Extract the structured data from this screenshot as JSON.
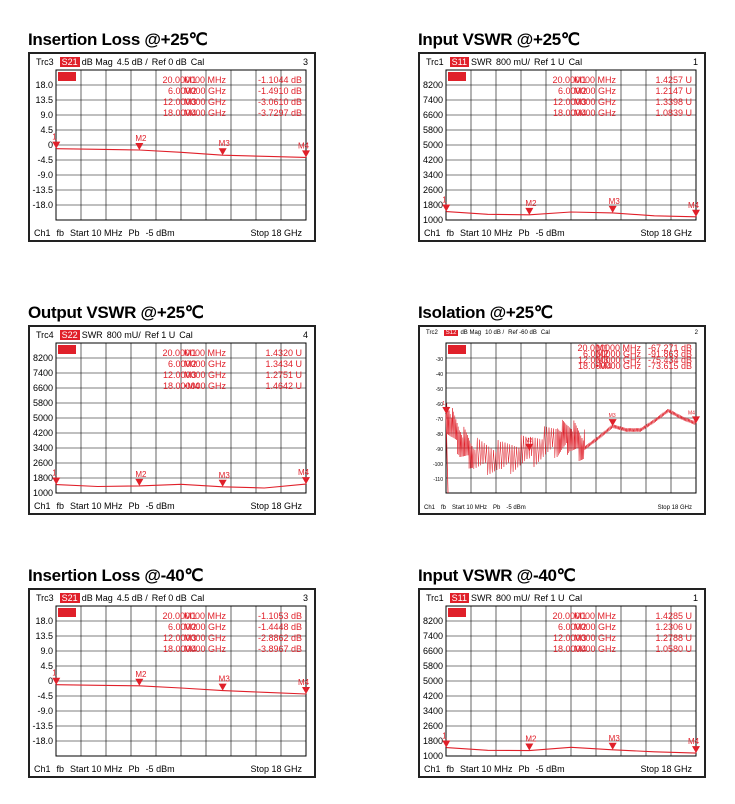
{
  "colors": {
    "trace": "#e0202a",
    "grid": "#000000",
    "background": "#ffffff",
    "frame": "#222222"
  },
  "panels": [
    {
      "title": "Insertion Loss @+25℃",
      "header": {
        "trace": "Trc3",
        "param": "S21",
        "format": "dB Mag",
        "scale": "4.5 dB /",
        "ref": "Ref 0 dB",
        "cal": "Cal",
        "num": "3"
      },
      "footer": {
        "ch": "Ch1",
        "fb": "fb",
        "start": "Start 10 MHz",
        "pb": "Pb",
        "power": "-5 dBm",
        "stop": "Stop 18 GHz"
      },
      "markers": [
        {
          "id": "M1",
          "freq": "20.000000 MHz",
          "value": "-1.1044 dB"
        },
        {
          "id": "M2",
          "freq": "6.000000 GHz",
          "value": "-1.4910 dB"
        },
        {
          "id": "M3",
          "freq": "12.000000 GHz",
          "value": "-3.0610 dB"
        },
        {
          "id": "M4",
          "freq": "18.000000 GHz",
          "value": "-3.7297 dB"
        }
      ]
    },
    {
      "title": "Input VSWR @+25℃",
      "header": {
        "trace": "Trc1",
        "param": "S11",
        "format": "SWR",
        "scale": "800 mU/",
        "ref": "Ref 1 U",
        "cal": "Cal",
        "num": "1"
      },
      "footer": {
        "ch": "Ch1",
        "fb": "fb",
        "start": "Start 10 MHz",
        "pb": "Pb",
        "power": "-5 dBm",
        "stop": "Stop 18 GHz"
      },
      "markers": [
        {
          "id": "M1",
          "freq": "20.000000 MHz",
          "value": "1.4257 U"
        },
        {
          "id": "M2",
          "freq": "6.000000 GHz",
          "value": "1.2147 U"
        },
        {
          "id": "M3",
          "freq": "12.000000 GHz",
          "value": "1.3398 U"
        },
        {
          "id": "M4",
          "freq": "18.000000 GHz",
          "value": "1.0839 U"
        }
      ]
    },
    {
      "title": "Output VSWR @+25℃",
      "header": {
        "trace": "Trc4",
        "param": "S22",
        "format": "SWR",
        "scale": "800 mU/",
        "ref": "Ref 1 U",
        "cal": "Cal",
        "num": "4"
      },
      "footer": {
        "ch": "Ch1",
        "fb": "fb",
        "start": "Start 10 MHz",
        "pb": "Pb",
        "power": "-5 dBm",
        "stop": "Stop 18 GHz"
      },
      "markers": [
        {
          "id": "M1",
          "freq": "20.000000 MHz",
          "value": "1.4320 U"
        },
        {
          "id": "M2",
          "freq": "6.000000 GHz",
          "value": "1.3434 U"
        },
        {
          "id": "M3",
          "freq": "12.000000 GHz",
          "value": "1.2751 U"
        },
        {
          "id": "•M4",
          "freq": "18.000000 GHz",
          "value": "1.4642 U"
        }
      ]
    },
    {
      "title": "Isolation @+25℃",
      "header": {
        "trace": "Trc2",
        "param": "S12",
        "format": "dB Mag",
        "scale": "10 dB /",
        "ref": "Ref -60 dB",
        "cal": "Cal",
        "num": "2"
      },
      "footer": {
        "ch": "Ch1",
        "fb": "fb",
        "start": "Start 10 MHz",
        "pb": "Pb",
        "power": "-5 dBm",
        "stop": "Stop 18 GHz"
      },
      "markers": [
        {
          "id": "M1",
          "freq": "20.000000 MHz",
          "value": "-67.271 dB"
        },
        {
          "id": "M2",
          "freq": "6.000000 GHz",
          "value": "-91.863 dB"
        },
        {
          "id": "M3",
          "freq": "12.000000 GHz",
          "value": "-75.434 dB"
        },
        {
          "id": "•M4",
          "freq": "18.000000 GHz",
          "value": "-73.615 dB"
        }
      ]
    },
    {
      "title": "Insertion Loss @-40℃",
      "header": {
        "trace": "Trc3",
        "param": "S21",
        "format": "dB Mag",
        "scale": "4.5 dB /",
        "ref": "Ref 0 dB",
        "cal": "Cal",
        "num": "3"
      },
      "footer": {
        "ch": "Ch1",
        "fb": "fb",
        "start": "Start 10 MHz",
        "pb": "Pb",
        "power": "-5 dBm",
        "stop": "Stop 18 GHz"
      },
      "markers": [
        {
          "id": "M1",
          "freq": "20.000000 MHz",
          "value": "-1.1053 dB"
        },
        {
          "id": "M2",
          "freq": "6.000000 GHz",
          "value": "-1.4448 dB"
        },
        {
          "id": "M3",
          "freq": "12.000000 GHz",
          "value": "-2.8862 dB"
        },
        {
          "id": "M4",
          "freq": "18.000000 GHz",
          "value": "-3.8967 dB"
        }
      ]
    },
    {
      "title": "Input VSWR @-40℃",
      "header": {
        "trace": "Trc1",
        "param": "S11",
        "format": "SWR",
        "scale": "800 mU/",
        "ref": "Ref 1 U",
        "cal": "Cal",
        "num": "1"
      },
      "footer": {
        "ch": "Ch1",
        "fb": "fb",
        "start": "Start 10 MHz",
        "pb": "Pb",
        "power": "-5 dBm",
        "stop": "Stop 18 GHz"
      },
      "markers": [
        {
          "id": "M1",
          "freq": "20.000000 MHz",
          "value": "1.4285 U"
        },
        {
          "id": "M2",
          "freq": "6.000000 GHz",
          "value": "1.2306 U"
        },
        {
          "id": "M3",
          "freq": "12.000000 GHz",
          "value": "1.2788 U"
        },
        {
          "id": "M4",
          "freq": "18.000000 GHz",
          "value": "1.0580 U"
        }
      ]
    }
  ],
  "chart_data": [
    {
      "type": "line",
      "title": "Insertion Loss @+25℃",
      "xlabel": "",
      "ylabel": "",
      "x_range_ghz": [
        0.01,
        18
      ],
      "ylim": [
        -22.5,
        22.5
      ],
      "yticks": [
        "18.0",
        "13.5",
        "9.0",
        "4.5",
        "0",
        "-4.5",
        "-9.0",
        "-13.5",
        "-18.0"
      ],
      "grid": true,
      "series": [
        {
          "name": "S21",
          "x": [
            0.02,
            3,
            6,
            9,
            12,
            15,
            18
          ],
          "y": [
            -1.1,
            -1.3,
            -1.49,
            -2.2,
            -3.06,
            -3.4,
            -3.73
          ]
        }
      ]
    },
    {
      "type": "line",
      "title": "Input VSWR @+25℃",
      "xlabel": "",
      "ylabel": "",
      "x_range_ghz": [
        0.01,
        18
      ],
      "ylim": [
        1,
        9000
      ],
      "yticks": [
        "8200",
        "7400",
        "6600",
        "5800",
        "5000",
        "4200",
        "3400",
        "2600",
        "1800",
        "1000"
      ],
      "grid": true,
      "series": [
        {
          "name": "S11",
          "x": [
            0.02,
            3,
            6,
            9,
            12,
            15,
            18
          ],
          "y": [
            1.43,
            1.25,
            1.21,
            1.4,
            1.34,
            1.15,
            1.08
          ]
        }
      ]
    },
    {
      "type": "line",
      "title": "Output VSWR @+25℃",
      "xlabel": "",
      "ylabel": "",
      "x_range_ghz": [
        0.01,
        18
      ],
      "ylim": [
        1,
        9000
      ],
      "yticks": [
        "8200",
        "7400",
        "6600",
        "5800",
        "5000",
        "4200",
        "3400",
        "2600",
        "1800",
        "1000"
      ],
      "grid": true,
      "series": [
        {
          "name": "S22",
          "x": [
            0.02,
            3,
            6,
            9,
            12,
            15,
            18
          ],
          "y": [
            1.43,
            1.3,
            1.34,
            1.45,
            1.28,
            1.2,
            1.46
          ]
        }
      ]
    },
    {
      "type": "line",
      "title": "Isolation @+25℃",
      "xlabel": "",
      "ylabel": "",
      "x_range_ghz": [
        0.01,
        18
      ],
      "ylim": [
        -120,
        -20
      ],
      "yticks": [
        "-30",
        "-40",
        "-50",
        "-60",
        "-70",
        "-80",
        "-90",
        "-100",
        "-110"
      ],
      "grid": true,
      "series": [
        {
          "name": "S12",
          "x": [
            0.02,
            1,
            2,
            4,
            6,
            8,
            9,
            10,
            11,
            12,
            13,
            14,
            15,
            16,
            17,
            18
          ],
          "y": [
            -67.3,
            -85,
            -95,
            -97,
            -91.9,
            -84,
            -82,
            -90,
            -83,
            -75.4,
            -78,
            -78,
            -72,
            -65,
            -70,
            -73.6
          ]
        }
      ]
    },
    {
      "type": "line",
      "title": "Insertion Loss @-40℃",
      "xlabel": "",
      "ylabel": "",
      "x_range_ghz": [
        0.01,
        18
      ],
      "ylim": [
        -22.5,
        22.5
      ],
      "yticks": [
        "18.0",
        "13.5",
        "9.0",
        "4.5",
        "0",
        "-4.5",
        "-9.0",
        "-13.5",
        "-18.0"
      ],
      "grid": true,
      "series": [
        {
          "name": "S21",
          "x": [
            0.02,
            3,
            6,
            9,
            12,
            15,
            18
          ],
          "y": [
            -1.11,
            -1.28,
            -1.44,
            -2.1,
            -2.89,
            -3.4,
            -3.9
          ]
        }
      ]
    },
    {
      "type": "line",
      "title": "Input VSWR @-40℃",
      "xlabel": "",
      "ylabel": "",
      "x_range_ghz": [
        0.01,
        18
      ],
      "ylim": [
        1,
        9000
      ],
      "yticks": [
        "8200",
        "7400",
        "6600",
        "5800",
        "5000",
        "4200",
        "3400",
        "2600",
        "1800",
        "1000"
      ],
      "grid": true,
      "series": [
        {
          "name": "S11",
          "x": [
            0.02,
            3,
            6,
            9,
            12,
            15,
            18
          ],
          "y": [
            1.43,
            1.25,
            1.23,
            1.45,
            1.28,
            1.15,
            1.06
          ]
        }
      ]
    }
  ]
}
